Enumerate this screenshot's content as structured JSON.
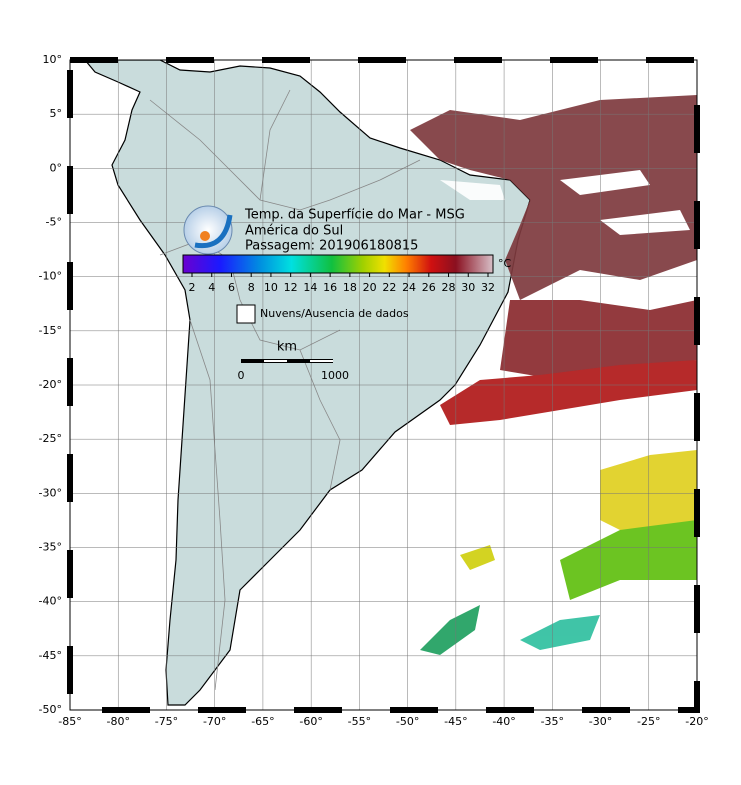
{
  "map": {
    "title": "Temp. da Superfície do Mar - MSG",
    "subtitle": "América do Sul",
    "pass": "Passagem: 201906180815",
    "colorbar": {
      "ticks": [
        2,
        4,
        6,
        8,
        10,
        12,
        14,
        16,
        18,
        20,
        22,
        24,
        26,
        28,
        30,
        32
      ],
      "unit": "°C"
    },
    "legend": "Nuvens/Ausencia de dados",
    "scale_bar": {
      "unit": "km",
      "labels": [
        0,
        1000
      ]
    },
    "lon_ticks": [
      {
        "value": -85,
        "label": "-85°"
      },
      {
        "value": -80,
        "label": "-80°"
      },
      {
        "value": -75,
        "label": "-75°"
      },
      {
        "value": -70,
        "label": "-70°"
      },
      {
        "value": -65,
        "label": "-65°"
      },
      {
        "value": -60,
        "label": "-60°"
      },
      {
        "value": -55,
        "label": "-55°"
      },
      {
        "value": -50,
        "label": "-50°"
      },
      {
        "value": -45,
        "label": "-45°"
      },
      {
        "value": -40,
        "label": "-40°"
      },
      {
        "value": -35,
        "label": "-35°"
      },
      {
        "value": -30,
        "label": "-30°"
      },
      {
        "value": -25,
        "label": "-25°"
      },
      {
        "value": -20,
        "label": "-20°"
      }
    ],
    "lat_ticks": [
      {
        "value": 10,
        "label": "10°"
      },
      {
        "value": 5,
        "label": "5°"
      },
      {
        "value": 0,
        "label": "0°"
      },
      {
        "value": -5,
        "label": "-5°"
      },
      {
        "value": -10,
        "label": "-10°"
      },
      {
        "value": -15,
        "label": "-15°"
      },
      {
        "value": -20,
        "label": "-20°"
      },
      {
        "value": -25,
        "label": "-25°"
      },
      {
        "value": -30,
        "label": "-30°"
      },
      {
        "value": -35,
        "label": "-35°"
      },
      {
        "value": -40,
        "label": "-40°"
      },
      {
        "value": -45,
        "label": "-45°"
      },
      {
        "value": -50,
        "label": "-50°"
      }
    ]
  }
}
